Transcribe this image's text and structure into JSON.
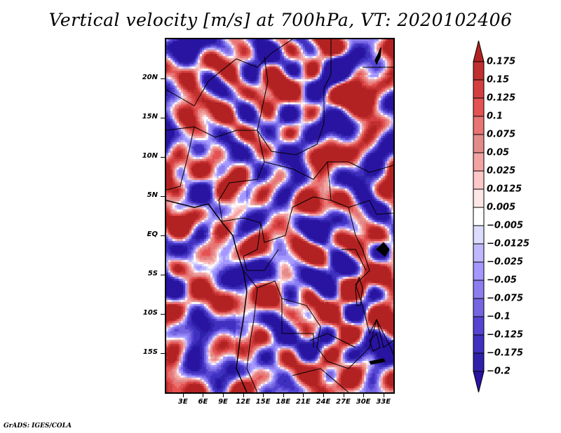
{
  "chart_data": {
    "type": "heatmap",
    "title": "Vertical velocity [m/s] at 700hPa, VT: 2020102406",
    "variable": "Vertical velocity",
    "units": "m/s",
    "level": "700hPa",
    "valid_time": "2020102406",
    "xlabel": "",
    "ylabel": "",
    "x_ticks": [
      "3E",
      "6E",
      "9E",
      "12E",
      "15E",
      "18E",
      "21E",
      "24E",
      "27E",
      "30E",
      "33E"
    ],
    "x_tick_values": [
      3,
      6,
      9,
      12,
      15,
      18,
      21,
      24,
      27,
      30,
      33
    ],
    "y_ticks": [
      "20N",
      "15N",
      "10N",
      "5N",
      "EQ",
      "5S",
      "10S",
      "15S"
    ],
    "y_tick_values": [
      20,
      15,
      10,
      5,
      0,
      -5,
      -10,
      -15
    ],
    "xlim": [
      0.5,
      34.5
    ],
    "ylim": [
      -20,
      25
    ],
    "grid": false,
    "legend": "right",
    "colorbar": {
      "labels": [
        "0.175",
        "0.15",
        "0.125",
        "0.1",
        "0.075",
        "0.05",
        "0.025",
        "0.0125",
        "0.005",
        "-0.005",
        "-0.0125",
        "-0.025",
        "-0.05",
        "-0.075",
        "-0.1",
        "-0.125",
        "-0.175",
        "-0.2"
      ],
      "colors": [
        "#b22222",
        "#c0302f",
        "#d44040",
        "#e55252",
        "#e87474",
        "#e38b8b",
        "#f4a3a3",
        "#fbc7c7",
        "#fde6e6",
        "#ffffff",
        "#dcdcff",
        "#c0b8ff",
        "#a497ff",
        "#8d7ef0",
        "#7565e0",
        "#5544d3",
        "#4030c0",
        "#3021aa",
        "#2814a0"
      ],
      "extend": "both"
    },
    "features": [
      "country borders",
      "coastlines",
      "lakes"
    ],
    "region": "Central Africa"
  },
  "footer": {
    "credit": "GrADS: IGES/COLA"
  }
}
